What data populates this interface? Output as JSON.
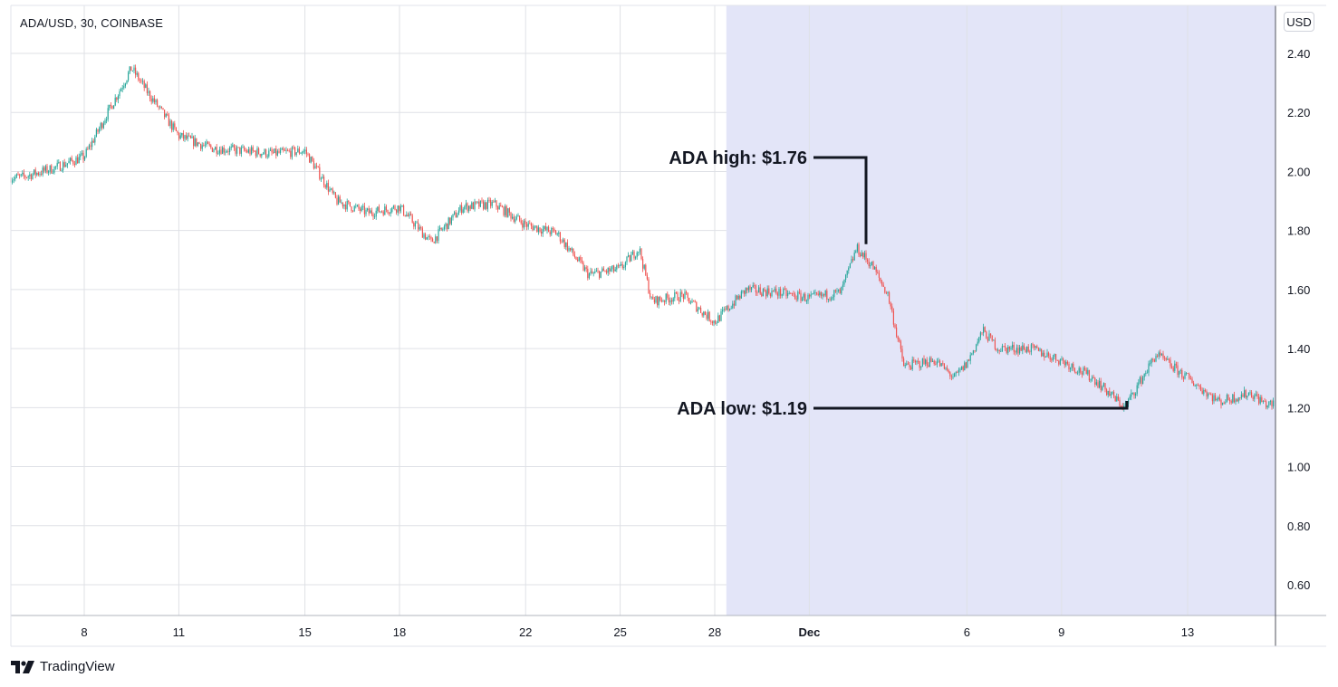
{
  "chart_header": {
    "symbol": "ADA/USD, 30, COINBASE"
  },
  "currency": "USD",
  "brand": {
    "name": "TradingView"
  },
  "colors": {
    "up": "#26a69a",
    "down": "#ef5350",
    "highlight": "#e3e5f8",
    "grid": "#dfe1e6",
    "annotation": "#131722"
  },
  "chart_data": {
    "type": "candlestick",
    "title": "ADA/USD, 30, COINBASE",
    "ylim": [
      0.5,
      2.5
    ],
    "yticks": [
      "2.40",
      "2.20",
      "2.00",
      "1.80",
      "1.60",
      "1.40",
      "1.20",
      "1.00",
      "0.80",
      "0.60"
    ],
    "xticks": [
      "8",
      "11",
      "15",
      "18",
      "22",
      "25",
      "28",
      "Dec",
      "6",
      "9",
      "13"
    ],
    "grid": true,
    "highlight_range": {
      "from": "Nov 29",
      "to": "Dec 15",
      "note": "shaded region"
    },
    "price_path": [
      {
        "t": "Nov 6",
        "price": 1.98
      },
      {
        "t": "Nov 7",
        "price": 2.01
      },
      {
        "t": "Nov 8",
        "price": 2.05
      },
      {
        "t": "Nov 9",
        "price": 2.25
      },
      {
        "t": "Nov 9.5",
        "price": 2.35
      },
      {
        "t": "Nov 10",
        "price": 2.27
      },
      {
        "t": "Nov 11",
        "price": 2.12
      },
      {
        "t": "Nov 12",
        "price": 2.08
      },
      {
        "t": "Nov 13",
        "price": 2.07
      },
      {
        "t": "Nov 14",
        "price": 2.06
      },
      {
        "t": "Nov 15",
        "price": 2.07
      },
      {
        "t": "Nov 16",
        "price": 1.9
      },
      {
        "t": "Nov 17",
        "price": 1.86
      },
      {
        "t": "Nov 18",
        "price": 1.88
      },
      {
        "t": "Nov 19",
        "price": 1.76
      },
      {
        "t": "Nov 20",
        "price": 1.88
      },
      {
        "t": "Nov 21",
        "price": 1.89
      },
      {
        "t": "Nov 22",
        "price": 1.82
      },
      {
        "t": "Nov 23",
        "price": 1.79
      },
      {
        "t": "Nov 24",
        "price": 1.65
      },
      {
        "t": "Nov 25",
        "price": 1.67
      },
      {
        "t": "Nov 25.6",
        "price": 1.74
      },
      {
        "t": "Nov 26",
        "price": 1.56
      },
      {
        "t": "Nov 27",
        "price": 1.58
      },
      {
        "t": "Nov 28",
        "price": 1.49
      },
      {
        "t": "Nov 29",
        "price": 1.6
      },
      {
        "t": "Nov 30",
        "price": 1.59
      },
      {
        "t": "Dec 1",
        "price": 1.57
      },
      {
        "t": "Dec 2",
        "price": 1.59
      },
      {
        "t": "Dec 2.5",
        "price": 1.74
      },
      {
        "t": "Dec 3",
        "price": 1.68
      },
      {
        "t": "Dec 3.5",
        "price": 1.58
      },
      {
        "t": "Dec 4",
        "price": 1.34
      },
      {
        "t": "Dec 5",
        "price": 1.36
      },
      {
        "t": "Dec 5.6",
        "price": 1.3
      },
      {
        "t": "Dec 6",
        "price": 1.35
      },
      {
        "t": "Dec 6.5",
        "price": 1.46
      },
      {
        "t": "Dec 7",
        "price": 1.4
      },
      {
        "t": "Dec 8",
        "price": 1.4
      },
      {
        "t": "Dec 9",
        "price": 1.36
      },
      {
        "t": "Dec 10",
        "price": 1.3
      },
      {
        "t": "Dec 11",
        "price": 1.2
      },
      {
        "t": "Dec 12",
        "price": 1.38
      },
      {
        "t": "Dec 13",
        "price": 1.3
      },
      {
        "t": "Dec 14",
        "price": 1.22
      },
      {
        "t": "Dec 15",
        "price": 1.25
      },
      {
        "t": "Dec 15.5",
        "price": 1.21
      }
    ],
    "annotations": [
      {
        "label": "ADA high: $1.76",
        "price": 1.76
      },
      {
        "label": "ADA low: $1.19",
        "price": 1.19
      }
    ]
  }
}
